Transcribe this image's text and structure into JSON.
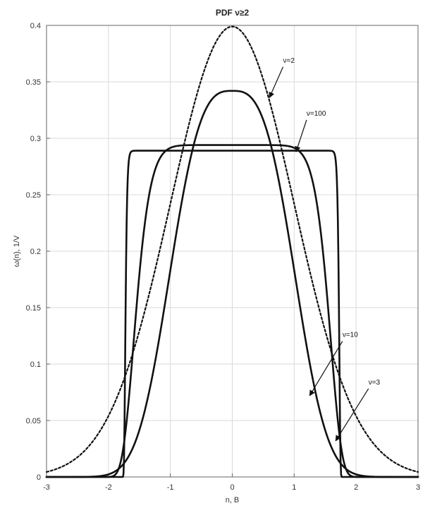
{
  "chart_data": {
    "type": "line",
    "title": "PDF ν≥2",
    "xlabel": "n, B",
    "ylabel": "ω(n), 1/V",
    "xlim": [
      -3,
      3
    ],
    "ylim": [
      0,
      0.4
    ],
    "grid": true,
    "x_ticks": [
      "-3",
      "-2",
      "-1",
      "0",
      "1",
      "2",
      "3"
    ],
    "y_ticks": [
      "0",
      "0.05",
      "0.1",
      "0.15",
      "0.2",
      "0.25",
      "0.3",
      "0.35",
      "0.4"
    ],
    "series": [
      {
        "label": "ν=2",
        "style": "dotted",
        "family": "gaussian",
        "mean": 0,
        "sigma": 1,
        "peak": 0.399
      },
      {
        "label": "ν=3",
        "style": "solid",
        "family": "generalized_gaussian",
        "beta": 3,
        "alpha": 1.17,
        "peak": 0.342
      },
      {
        "label": "ν=10",
        "style": "solid",
        "family": "generalized_gaussian",
        "beta": 10,
        "alpha": 1.61,
        "peak": 0.294
      },
      {
        "label": "ν=100",
        "style": "solid",
        "family": "generalized_gaussian",
        "beta": 100,
        "alpha": 1.73,
        "peak": 0.289
      }
    ],
    "annotations": [
      {
        "text": "ν=2",
        "tx": 0.82,
        "ty": 0.367,
        "ax": 0.6,
        "ay": 0.336
      },
      {
        "text": "ν=100",
        "tx": 1.2,
        "ty": 0.32,
        "ax": 1.03,
        "ay": 0.288
      },
      {
        "text": "ν=10",
        "tx": 1.78,
        "ty": 0.124,
        "ax": 1.25,
        "ay": 0.072
      },
      {
        "text": "ν=3",
        "tx": 2.2,
        "ty": 0.082,
        "ax": 1.67,
        "ay": 0.032
      }
    ],
    "colors": {
      "line": "#111111",
      "grid": "#d9d9d9",
      "axis": "#666666"
    }
  }
}
